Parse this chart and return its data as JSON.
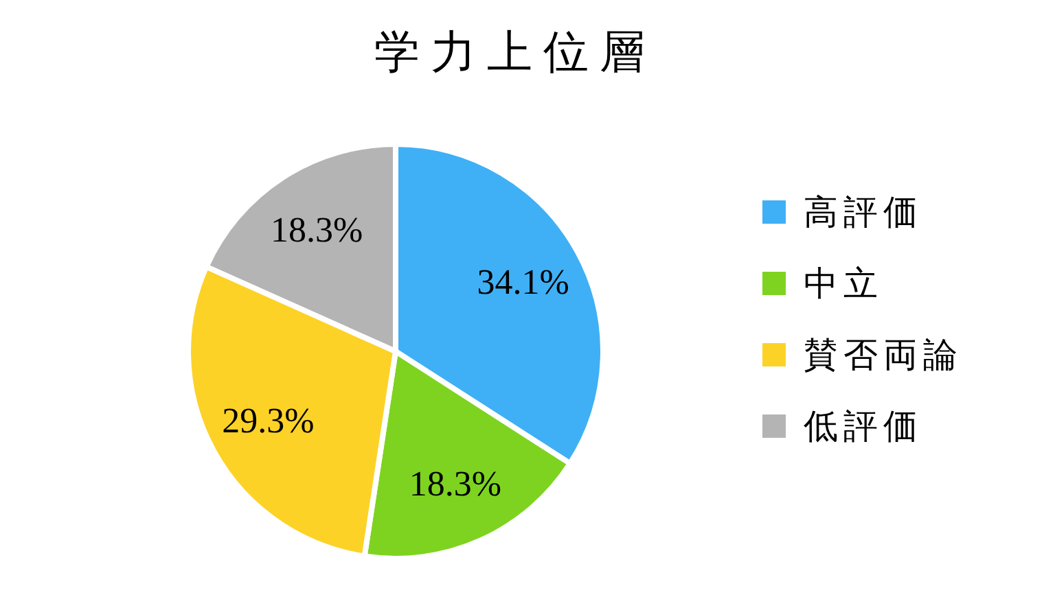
{
  "chart_data": {
    "type": "pie",
    "title": "学力上位層",
    "categories": [
      "高評価",
      "中立",
      "賛否両論",
      "低評価"
    ],
    "values": [
      34.1,
      18.3,
      29.3,
      18.3
    ],
    "colors": [
      "#3fb0f5",
      "#7ed321",
      "#fdd227",
      "#b4b4b4"
    ],
    "value_labels": [
      "34.1%",
      "18.3%",
      "29.3%",
      "18.3%"
    ],
    "legend": "right"
  }
}
